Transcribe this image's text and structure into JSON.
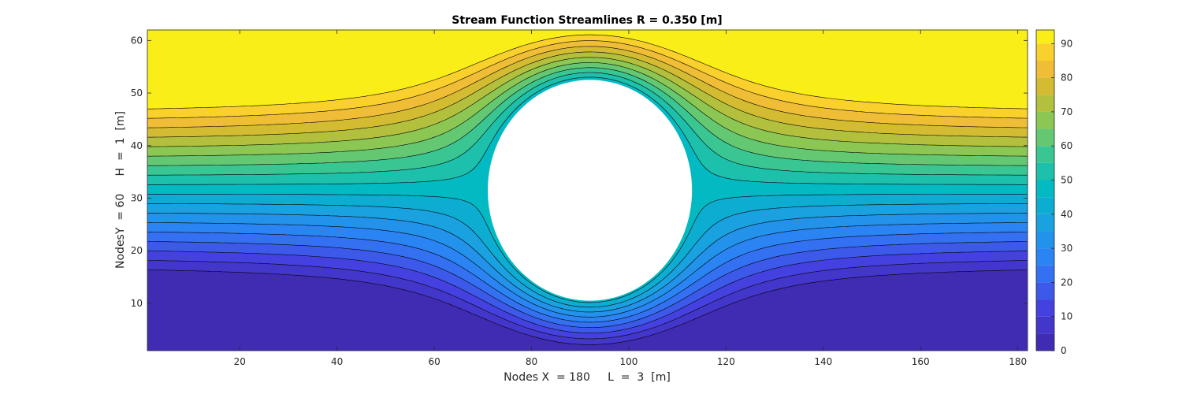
{
  "chart_data": {
    "type": "contour",
    "title": "Stream Function Streamlines R = 0.350 [m]",
    "xlabel": "Nodes X  = 180     L  =  3  [m]",
    "ylabel": "NodesY  = 60     H  =  1  [m]",
    "xlim": [
      1,
      182
    ],
    "ylim": [
      1,
      62
    ],
    "xticks": [
      "20",
      "40",
      "60",
      "80",
      "100",
      "120",
      "140",
      "160",
      "180"
    ],
    "yticks": [
      "10",
      "20",
      "30",
      "40",
      "50",
      "60"
    ],
    "obstacle": {
      "shape": "circle",
      "center_x": 92,
      "center_y": 31.5,
      "radius_nodes": 21
    },
    "levels": [
      0,
      5,
      10,
      15,
      20,
      25,
      30,
      35,
      40,
      45,
      50,
      55,
      60,
      65,
      70,
      75,
      80,
      85,
      90,
      95
    ],
    "colorbar": {
      "lim": [
        0,
        94
      ],
      "ticks": [
        "0",
        "10",
        "20",
        "30",
        "40",
        "50",
        "60",
        "70",
        "80",
        "90"
      ],
      "colormap": "parula"
    },
    "grid": false,
    "legend": "none"
  }
}
